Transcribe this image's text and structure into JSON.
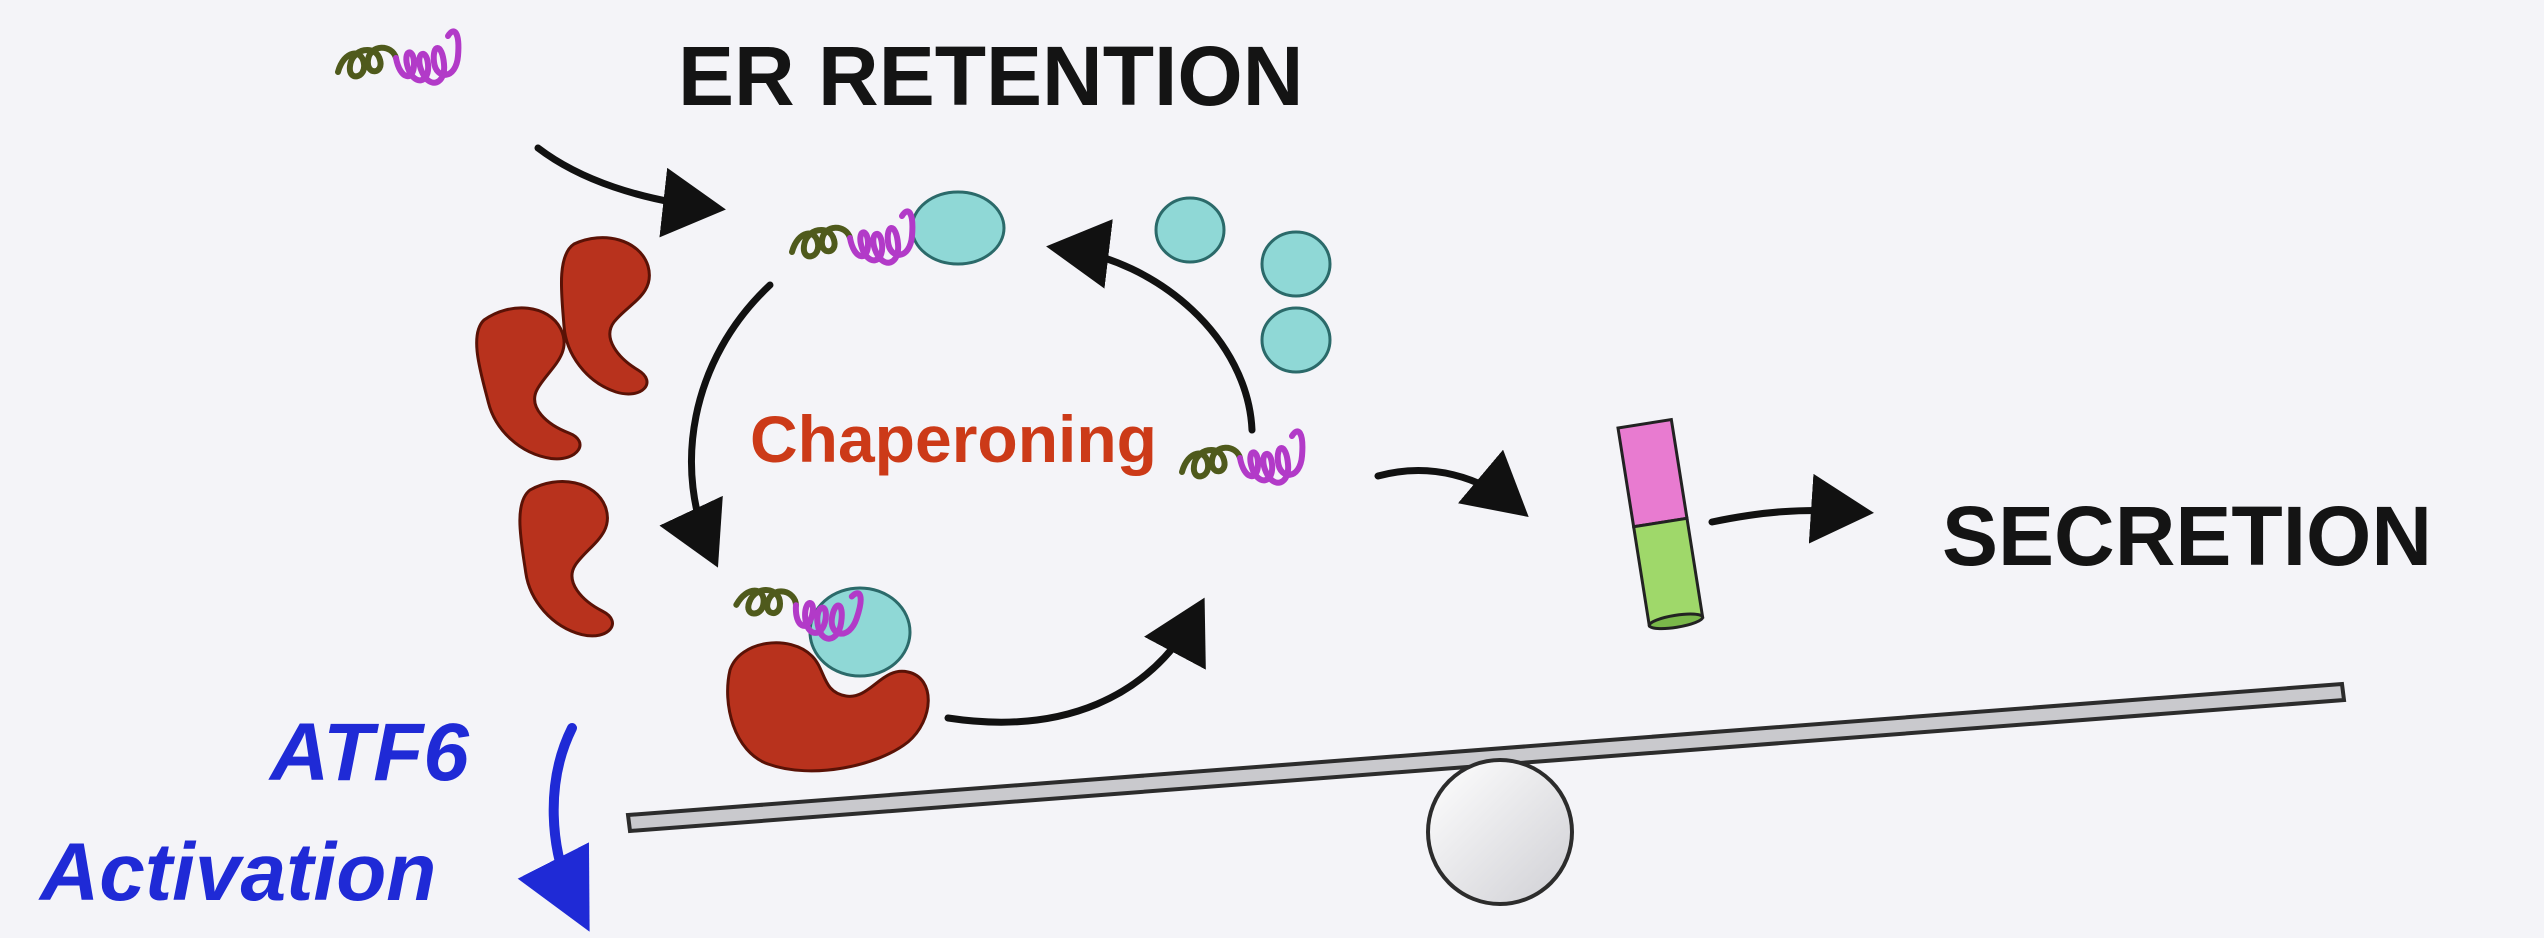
{
  "labels": {
    "er_retention": "ER RETENTION",
    "secretion": "SECRETION",
    "chaperoning": "Chaperoning",
    "atf6_line1": "ATF6",
    "atf6_line2": "Activation"
  },
  "colors": {
    "background": "#f4f4f8",
    "chaperone_red": "#b8321d",
    "bip_cyan": "#8fd8d6",
    "peptide_green": "#4f5a1c",
    "peptide_purple": "#b23ac8",
    "atf6_blue": "#1f2ad6",
    "label_red": "#cc3a18",
    "secreted_pink": "#e87bd0",
    "secreted_green": "#9fd86a"
  },
  "icons": [
    "unfolded-peptide-icon",
    "bip-chaperone-icon",
    "lectin-chaperone-icon",
    "folded-protein-icon",
    "seesaw-balance-icon"
  ]
}
